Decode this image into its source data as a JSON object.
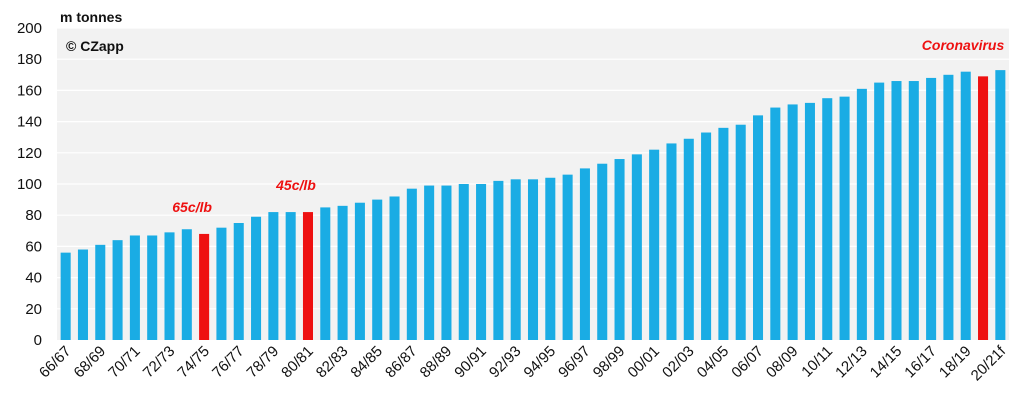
{
  "chart_data": {
    "type": "bar",
    "title": "",
    "ylabel": "m tonnes",
    "xlabel": "",
    "ylim": [
      0,
      200
    ],
    "yticks": [
      0,
      20,
      40,
      60,
      80,
      100,
      120,
      140,
      160,
      180,
      200
    ],
    "copyright": "© CZapp",
    "categories": [
      "66/67",
      "67/68",
      "68/69",
      "69/70",
      "70/71",
      "71/72",
      "72/73",
      "73/74",
      "74/75",
      "75/76",
      "76/77",
      "77/78",
      "78/79",
      "79/80",
      "80/81",
      "81/82",
      "82/83",
      "83/84",
      "84/85",
      "85/86",
      "86/87",
      "87/88",
      "88/89",
      "89/90",
      "90/91",
      "91/92",
      "92/93",
      "93/94",
      "94/95",
      "95/96",
      "96/97",
      "97/98",
      "98/99",
      "99/00",
      "00/01",
      "01/02",
      "02/03",
      "03/04",
      "04/05",
      "05/06",
      "06/07",
      "07/08",
      "08/09",
      "09/10",
      "10/11",
      "11/12",
      "12/13",
      "13/14",
      "14/15",
      "15/16",
      "16/17",
      "17/18",
      "18/19",
      "19/20",
      "20/21f"
    ],
    "tick_labels_shown": [
      "66/67",
      "68/69",
      "70/71",
      "72/73",
      "74/75",
      "76/77",
      "78/79",
      "80/81",
      "82/83",
      "84/85",
      "86/87",
      "88/89",
      "90/91",
      "92/93",
      "94/95",
      "96/97",
      "98/99",
      "00/01",
      "02/03",
      "04/05",
      "06/07",
      "08/09",
      "10/11",
      "12/13",
      "14/15",
      "16/17",
      "18/19",
      "20/21f"
    ],
    "values": [
      56,
      58,
      61,
      64,
      67,
      67,
      69,
      71,
      68,
      72,
      75,
      79,
      82,
      82,
      82,
      85,
      86,
      88,
      90,
      92,
      97,
      99,
      99,
      100,
      100,
      102,
      103,
      103,
      104,
      106,
      110,
      113,
      116,
      119,
      122,
      126,
      129,
      133,
      136,
      138,
      144,
      149,
      151,
      152,
      155,
      156,
      161,
      165,
      166,
      166,
      168,
      170,
      172,
      169,
      173
    ],
    "colors": {
      "default": "#1aace4",
      "highlight": "#ee1111",
      "grid": "#ffffff",
      "plot_bg": "#f2f2f2"
    },
    "highlight_indices": [
      8,
      14,
      53
    ],
    "annotations": [
      {
        "index": 8,
        "text": "65c/lb"
      },
      {
        "index": 14,
        "text": "45c/lb"
      },
      {
        "index": 53,
        "text": "Coronavirus"
      }
    ],
    "grid": true
  }
}
